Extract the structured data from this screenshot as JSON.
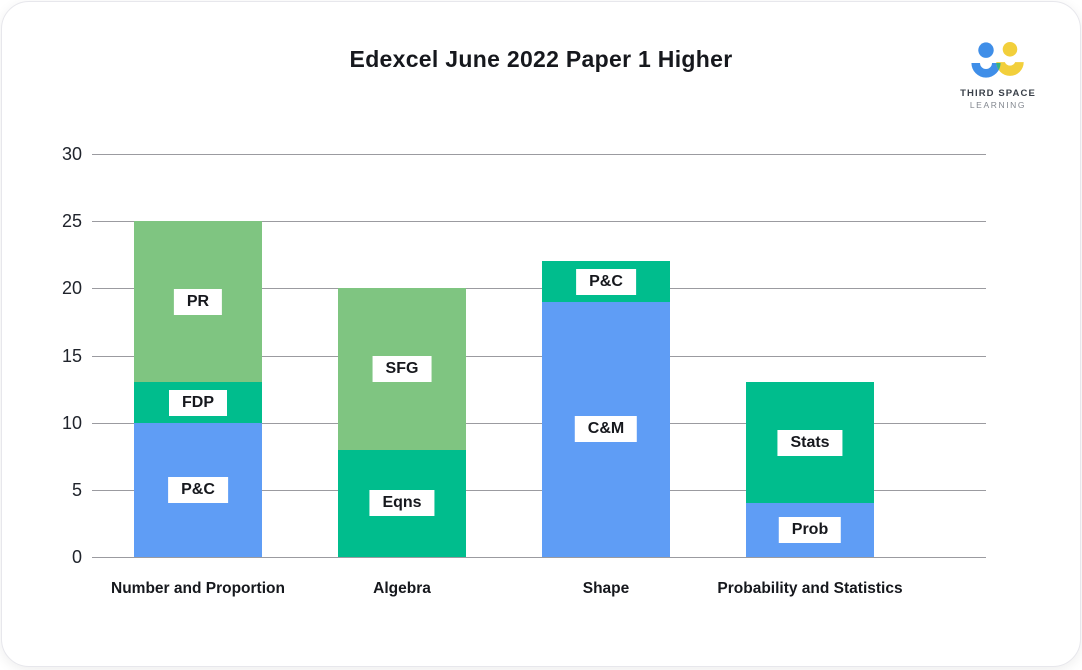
{
  "header": {
    "title": "Edexcel June 2022 Paper 1 Higher"
  },
  "logo": {
    "brand_line1": "THIRD SPACE",
    "brand_line2": "LEARNING",
    "colors": {
      "blue": "#3F8EE8",
      "yellow": "#F2CF3B",
      "teal": "#35B382"
    }
  },
  "chart_data": {
    "type": "bar",
    "stacked": true,
    "title": "Edexcel June 2022 Paper 1 Higher",
    "categories": [
      "Number and Proportion",
      "Algebra",
      "Shape",
      "Probability and Statistics"
    ],
    "yticks": [
      0,
      5,
      10,
      15,
      20,
      25,
      30
    ],
    "ylim": [
      0,
      30
    ],
    "grid": true,
    "legend": false,
    "palette": {
      "blue": "#5F9DF5",
      "teal": "#00BD8D",
      "green": "#7FC581"
    },
    "gridline_color": "#9b9ba0",
    "bars": [
      {
        "category": "Number and Proportion",
        "total": 25,
        "segments": [
          {
            "label": "P&C",
            "value": 10,
            "color": "blue"
          },
          {
            "label": "FDP",
            "value": 3,
            "color": "teal"
          },
          {
            "label": "PR",
            "value": 12,
            "color": "green"
          }
        ]
      },
      {
        "category": "Algebra",
        "total": 20,
        "segments": [
          {
            "label": "Eqns",
            "value": 8,
            "color": "teal"
          },
          {
            "label": "SFG",
            "value": 12,
            "color": "green"
          }
        ]
      },
      {
        "category": "Shape",
        "total": 22,
        "segments": [
          {
            "label": "C&M",
            "value": 19,
            "color": "blue"
          },
          {
            "label": "P&C",
            "value": 3,
            "color": "teal"
          }
        ]
      },
      {
        "category": "Probability and Statistics",
        "total": 13,
        "segments": [
          {
            "label": "Prob",
            "value": 4,
            "color": "blue"
          },
          {
            "label": "Stats",
            "value": 9,
            "color": "teal"
          }
        ]
      }
    ]
  }
}
